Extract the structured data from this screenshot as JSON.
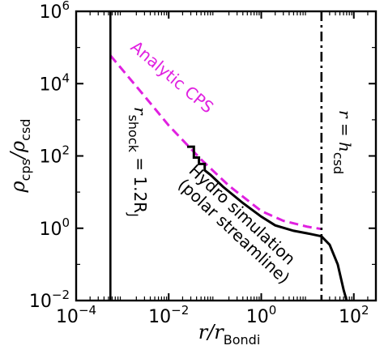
{
  "chart_data": {
    "type": "line",
    "xlabel": {
      "base": "r/r",
      "sub": "Bondi"
    },
    "ylabel": {
      "base": "ρ",
      "sub1": "cps",
      "mid": "/ρ",
      "sub2": "csd"
    },
    "xscale": "log",
    "yscale": "log",
    "xlim": [
      0.0001,
      300
    ],
    "ylim": [
      0.01,
      1000000
    ],
    "xticks": [
      {
        "value": 0.0001,
        "base": "10",
        "exp": "−4"
      },
      {
        "value": 0.01,
        "base": "10",
        "exp": "−2"
      },
      {
        "value": 1,
        "base": "10",
        "exp": "0"
      },
      {
        "value": 100,
        "base": "10",
        "exp": "2"
      }
    ],
    "yticks": [
      {
        "value": 0.01,
        "base": "10",
        "exp": "−2"
      },
      {
        "value": 1,
        "base": "10",
        "exp": "0"
      },
      {
        "value": 100,
        "base": "10",
        "exp": "2"
      },
      {
        "value": 10000,
        "base": "10",
        "exp": "4"
      },
      {
        "value": 1000000,
        "base": "10",
        "exp": "6"
      }
    ],
    "grid": false,
    "series": [
      {
        "label": "Analytic CPS",
        "color": "#e020e0",
        "style": "dashed",
        "x": [
          0.00055,
          0.003,
          0.01,
          0.05,
          0.2,
          1,
          3,
          10,
          20
        ],
        "y": [
          60000,
          4500,
          700,
          80,
          15,
          3.0,
          1.6,
          1.1,
          0.95
        ]
      },
      {
        "label": "Hydro simulation (polar streamline)",
        "color": "#000000",
        "style": "solid",
        "x": [
          0.025,
          0.035,
          0.035,
          0.045,
          0.045,
          0.06,
          0.06,
          0.08,
          0.15,
          0.4,
          1.0,
          2.0,
          5.0,
          10,
          20,
          30,
          45,
          60,
          70
        ],
        "y": [
          180,
          180,
          90,
          90,
          60,
          60,
          40,
          30,
          14,
          5.0,
          2.1,
          1.2,
          0.85,
          0.72,
          0.6,
          0.35,
          0.1,
          0.02,
          0.01
        ]
      }
    ],
    "vlines": [
      {
        "x": 0.00055,
        "label_var": "r",
        "label_sub": "shock",
        "label_rest": " = 1.2R",
        "label_rest_sub": "J",
        "style": "solid"
      },
      {
        "x": 20,
        "label_var": "r = h",
        "label_sub": "csd",
        "style": "dashdot"
      }
    ],
    "annotations": {
      "analytic_label": "Analytic CPS",
      "hydro_line1": "Hydro simulation",
      "hydro_line2": "(polar streamline)"
    }
  }
}
